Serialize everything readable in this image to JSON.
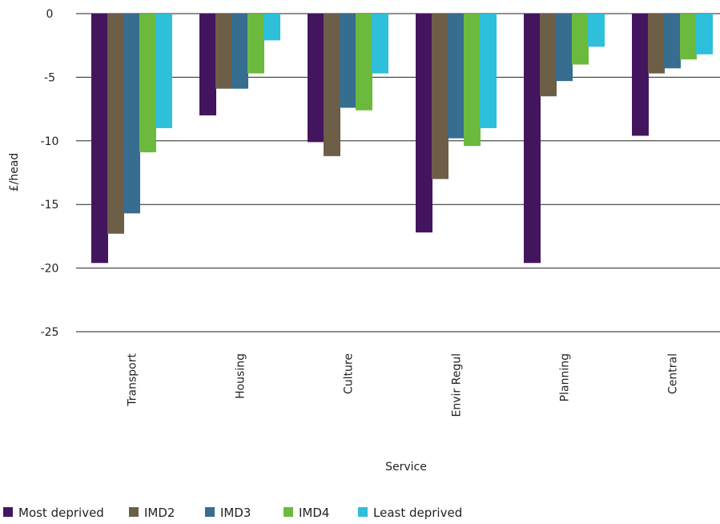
{
  "chart_data": {
    "type": "bar",
    "xlabel": "Service",
    "ylabel": "£/head",
    "ylim": [
      -25,
      0
    ],
    "yticks": [
      0,
      -5,
      -10,
      -15,
      -20,
      -25
    ],
    "grid": true,
    "legend_position": "bottom-left",
    "categories": [
      "Transport",
      "Housing",
      "Culture",
      "Envir Regul",
      "Planning",
      "Central"
    ],
    "series": [
      {
        "name": "Most deprived",
        "color": "#44155f",
        "values": [
          -19.6,
          -8.0,
          -10.1,
          -17.2,
          -19.6,
          -9.6
        ]
      },
      {
        "name": "IMD2",
        "color": "#6d5e48",
        "values": [
          -17.3,
          -5.9,
          -11.2,
          -13.0,
          -6.5,
          -4.7
        ]
      },
      {
        "name": "IMD3",
        "color": "#376d8e",
        "values": [
          -15.7,
          -5.9,
          -7.4,
          -9.8,
          -5.3,
          -4.3
        ]
      },
      {
        "name": "IMD4",
        "color": "#6bba3e",
        "values": [
          -10.9,
          -4.7,
          -7.6,
          -10.4,
          -4.0,
          -3.6
        ]
      },
      {
        "name": "Least deprived",
        "color": "#2ebfda",
        "values": [
          -9.0,
          -2.1,
          -4.7,
          -9.0,
          -2.6,
          -3.2
        ]
      }
    ]
  }
}
